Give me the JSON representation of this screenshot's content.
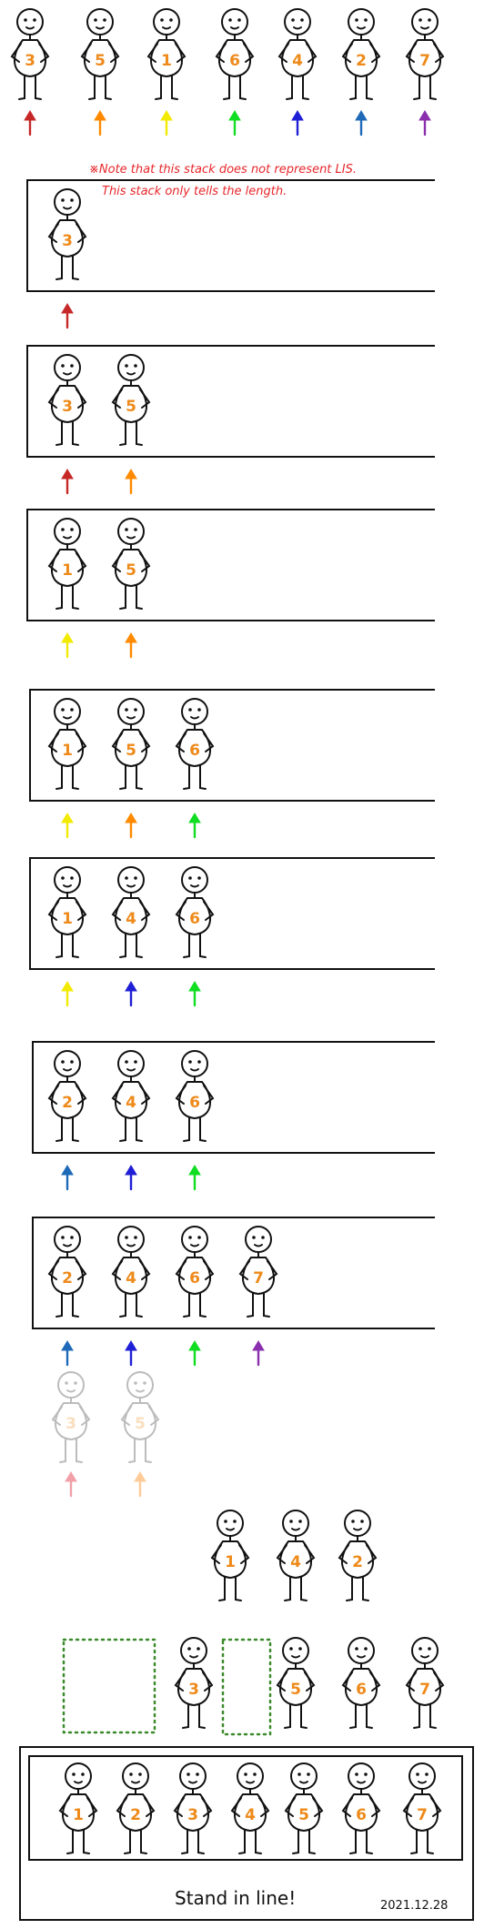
{
  "note": {
    "line1": "※Note that this stack does not represent LIS.",
    "line2": "This stack only tells the length."
  },
  "arrow_colors": {
    "3": "#c62828",
    "5": "#ff8a00",
    "1": "#f2ea00",
    "6": "#11dd22",
    "4": "#1f1fd6",
    "2": "#1e6ab8",
    "7": "#8a2fae"
  },
  "faded_arrow_colors": {
    "3": "#f2a0a8",
    "5": "#ffcc99"
  },
  "sequence": [
    3,
    5,
    1,
    6,
    4,
    2,
    7
  ],
  "stacks": [
    [
      3
    ],
    [
      3,
      5
    ],
    [
      1,
      5
    ],
    [
      1,
      5,
      6
    ],
    [
      1,
      4,
      6
    ],
    [
      2,
      4,
      6
    ],
    [
      2,
      4,
      6,
      7
    ]
  ],
  "removed": [
    3,
    5
  ],
  "regroup_top": [
    1,
    4,
    2
  ],
  "regroup_bottom": [
    3,
    5,
    6,
    7
  ],
  "final_line": [
    1,
    2,
    3,
    4,
    5,
    6,
    7
  ],
  "footer": {
    "caption": "Stand in line!",
    "date": "2021.12.28"
  }
}
